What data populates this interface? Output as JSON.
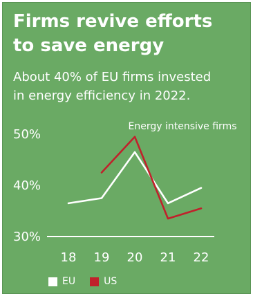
{
  "title": "Firms revive efforts\nto save energy",
  "subtitle": "About 40% of EU firms invested\nin energy efficiency in 2022.",
  "colors": {
    "background": "#6aaa64",
    "eu": "#ffffff",
    "us": "#c0212b",
    "text": "#ffffff"
  },
  "chart_data": {
    "type": "line",
    "title": "Firms revive efforts to save energy",
    "annotation": "Energy intensive firms",
    "xlabel": "",
    "ylabel": "",
    "categories": [
      "18",
      "19",
      "20",
      "21",
      "22"
    ],
    "x": [
      2018,
      2019,
      2020,
      2021,
      2022
    ],
    "y_ticks": [
      "50%",
      "40%",
      "30%"
    ],
    "y_tick_values": [
      50,
      40,
      30
    ],
    "ylim": [
      30,
      52
    ],
    "grid": false,
    "legend": "bottom",
    "series": [
      {
        "name": "EU",
        "color": "#ffffff",
        "values": [
          36.5,
          37.5,
          46.5,
          36.5,
          39.5
        ]
      },
      {
        "name": "US",
        "color": "#c0212b",
        "values": [
          null,
          42.5,
          49.5,
          33.5,
          35.5
        ]
      }
    ]
  }
}
